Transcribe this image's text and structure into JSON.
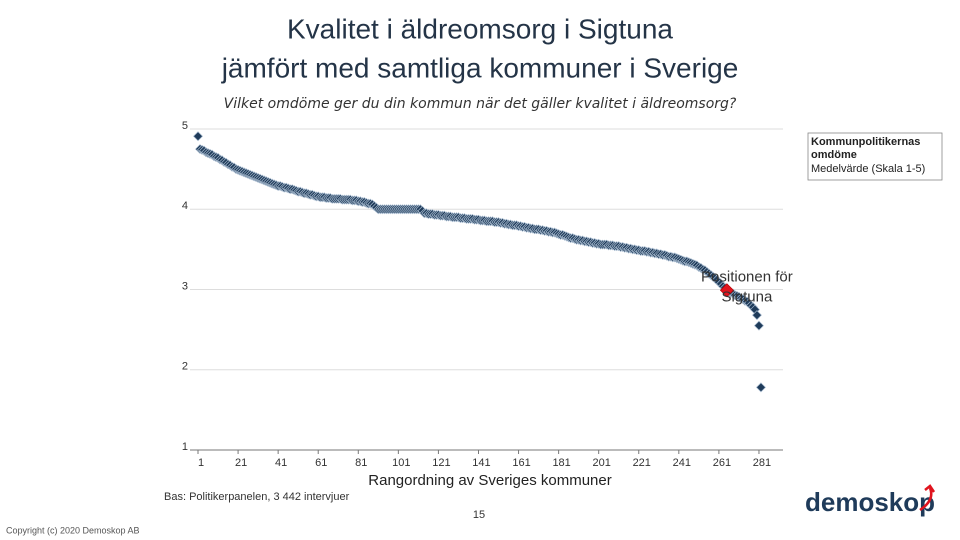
{
  "chart_data": {
    "type": "scatter",
    "title": [
      "Kvalitet i äldreomsorg i Sigtuna",
      "jämfört med samtliga kommuner i Sverige"
    ],
    "subtitle": "Vilket omdöme ger du din kommun när det gäller kvalitet i äldreomsorg?",
    "x_label": "Rangordning av Sveriges kommuner",
    "xlim": [
      -3,
      293
    ],
    "ylim": [
      1,
      5
    ],
    "xticks": [
      1,
      21,
      41,
      61,
      81,
      101,
      121,
      141,
      161,
      181,
      201,
      221,
      241,
      261,
      281
    ],
    "yticks": [
      1,
      2,
      3,
      4,
      5
    ],
    "grid": true,
    "legend": {
      "position": "right",
      "title": "Kommunpolitikernas omdöme",
      "subtitle": "Medelvärde (Skala 1-5)"
    },
    "series": [
      {
        "name": "Kommunpolitikernas omdöme",
        "color": "#1f3b5a",
        "marker": "diamond",
        "x": [
          1,
          2,
          3,
          4,
          5,
          6,
          7,
          8,
          9,
          10,
          11,
          12,
          13,
          14,
          15,
          16,
          17,
          18,
          19,
          20,
          21,
          22,
          23,
          24,
          25,
          26,
          27,
          28,
          29,
          30,
          31,
          32,
          33,
          34,
          35,
          36,
          37,
          38,
          39,
          40,
          41,
          42,
          43,
          44,
          45,
          46,
          47,
          48,
          49,
          50,
          51,
          52,
          53,
          54,
          55,
          56,
          57,
          58,
          59,
          60,
          61,
          62,
          63,
          64,
          65,
          66,
          67,
          68,
          69,
          70,
          71,
          72,
          73,
          74,
          75,
          76,
          77,
          78,
          79,
          80,
          81,
          82,
          83,
          84,
          85,
          86,
          87,
          88,
          89,
          90,
          91,
          92,
          93,
          94,
          95,
          96,
          97,
          98,
          99,
          100,
          101,
          102,
          103,
          104,
          105,
          106,
          107,
          108,
          109,
          110,
          111,
          112,
          113,
          114,
          115,
          116,
          117,
          118,
          119,
          120,
          121,
          122,
          123,
          124,
          125,
          126,
          127,
          128,
          129,
          130,
          131,
          132,
          133,
          134,
          135,
          136,
          137,
          138,
          139,
          140,
          141,
          142,
          143,
          144,
          145,
          146,
          147,
          148,
          149,
          150,
          151,
          152,
          153,
          154,
          155,
          156,
          157,
          158,
          159,
          160,
          161,
          162,
          163,
          164,
          165,
          166,
          167,
          168,
          169,
          170,
          171,
          172,
          173,
          174,
          175,
          176,
          177,
          178,
          179,
          180,
          181,
          182,
          183,
          184,
          185,
          186,
          187,
          188,
          189,
          190,
          191,
          192,
          193,
          194,
          195,
          196,
          197,
          198,
          199,
          200,
          201,
          202,
          203,
          204,
          205,
          206,
          207,
          208,
          209,
          210,
          211,
          212,
          213,
          214,
          215,
          216,
          217,
          218,
          219,
          220,
          221,
          222,
          223,
          224,
          225,
          226,
          227,
          228,
          229,
          230,
          231,
          232,
          233,
          234,
          235,
          236,
          237,
          238,
          239,
          240,
          241,
          242,
          243,
          244,
          245,
          246,
          247,
          248,
          249,
          250,
          251,
          252,
          253,
          254,
          255,
          256,
          257,
          258,
          259,
          260,
          261,
          262,
          263,
          264,
          265,
          266,
          267,
          268,
          269,
          270,
          271,
          272,
          273,
          274,
          275,
          276,
          277,
          278,
          279,
          280,
          281,
          282
        ],
        "values": [
          4.91,
          4.75,
          4.74,
          4.73,
          4.71,
          4.7,
          4.69,
          4.68,
          4.66,
          4.65,
          4.64,
          4.62,
          4.61,
          4.59,
          4.58,
          4.56,
          4.55,
          4.53,
          4.52,
          4.5,
          4.49,
          4.48,
          4.47,
          4.46,
          4.45,
          4.44,
          4.43,
          4.42,
          4.41,
          4.4,
          4.39,
          4.38,
          4.37,
          4.36,
          4.35,
          4.34,
          4.33,
          4.32,
          4.31,
          4.3,
          4.29,
          4.29,
          4.28,
          4.27,
          4.27,
          4.26,
          4.25,
          4.25,
          4.24,
          4.23,
          4.22,
          4.22,
          4.21,
          4.2,
          4.2,
          4.19,
          4.18,
          4.18,
          4.17,
          4.16,
          4.16,
          4.15,
          4.15,
          4.15,
          4.14,
          4.14,
          4.14,
          4.13,
          4.13,
          4.13,
          4.13,
          4.13,
          4.12,
          4.12,
          4.12,
          4.12,
          4.12,
          4.11,
          4.11,
          4.11,
          4.1,
          4.1,
          4.09,
          4.09,
          4.08,
          4.07,
          4.07,
          4.06,
          4.04,
          4.02,
          4.0,
          4.0,
          4.0,
          4.0,
          4.0,
          4.0,
          4.0,
          4.0,
          4.0,
          4.0,
          4.0,
          4.0,
          4.0,
          4.0,
          4.0,
          4.0,
          4.0,
          4.0,
          4.0,
          4.0,
          4.0,
          4.0,
          3.98,
          3.95,
          3.95,
          3.94,
          3.94,
          3.94,
          3.93,
          3.93,
          3.93,
          3.92,
          3.92,
          3.92,
          3.91,
          3.91,
          3.91,
          3.9,
          3.9,
          3.9,
          3.9,
          3.89,
          3.89,
          3.89,
          3.88,
          3.88,
          3.88,
          3.88,
          3.87,
          3.87,
          3.87,
          3.86,
          3.86,
          3.86,
          3.85,
          3.85,
          3.85,
          3.85,
          3.84,
          3.84,
          3.84,
          3.83,
          3.83,
          3.82,
          3.82,
          3.81,
          3.81,
          3.8,
          3.8,
          3.8,
          3.79,
          3.79,
          3.78,
          3.78,
          3.77,
          3.77,
          3.76,
          3.76,
          3.75,
          3.75,
          3.75,
          3.74,
          3.74,
          3.73,
          3.73,
          3.72,
          3.72,
          3.71,
          3.71,
          3.7,
          3.69,
          3.68,
          3.68,
          3.67,
          3.66,
          3.65,
          3.64,
          3.64,
          3.63,
          3.62,
          3.62,
          3.61,
          3.61,
          3.6,
          3.6,
          3.59,
          3.59,
          3.58,
          3.58,
          3.57,
          3.57,
          3.56,
          3.56,
          3.56,
          3.56,
          3.55,
          3.55,
          3.55,
          3.54,
          3.54,
          3.54,
          3.53,
          3.53,
          3.52,
          3.52,
          3.51,
          3.51,
          3.5,
          3.5,
          3.49,
          3.49,
          3.48,
          3.48,
          3.48,
          3.47,
          3.47,
          3.46,
          3.46,
          3.45,
          3.45,
          3.44,
          3.44,
          3.43,
          3.43,
          3.42,
          3.41,
          3.41,
          3.4,
          3.4,
          3.39,
          3.38,
          3.37,
          3.36,
          3.35,
          3.35,
          3.34,
          3.33,
          3.32,
          3.31,
          3.3,
          3.28,
          3.27,
          3.25,
          3.24,
          3.22,
          3.2,
          3.18,
          3.16,
          3.14,
          3.12,
          3.09,
          3.07,
          3.04,
          3.02,
          2.99,
          2.98,
          2.96,
          2.95,
          2.93,
          2.92,
          2.91,
          2.89,
          2.88,
          2.86,
          2.85,
          2.83,
          2.8,
          2.78,
          2.75,
          2.68,
          2.55,
          1.78
        ]
      },
      {
        "name": "Positionen för Sigtuna",
        "color": "#e0141e",
        "marker": "diamond",
        "x": [
          265
        ],
        "values": [
          2.99
        ]
      }
    ],
    "annotation": [
      "Positionen för",
      "Sigtuna"
    ],
    "footnote": "Bas: Politikerpanelen, 3 442 intervjuer",
    "page_number": "15",
    "copyright": "Copyright (c) 2020 Demoskop AB",
    "logo": "demoskop"
  }
}
